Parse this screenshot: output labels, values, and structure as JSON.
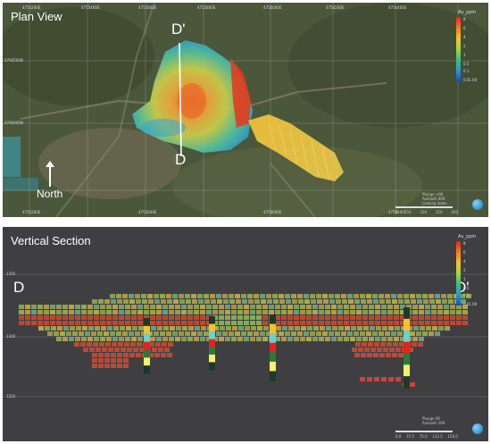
{
  "plan": {
    "title": "Plan View",
    "label_top": "D'",
    "label_bottom": "D",
    "north_label": "North",
    "legend_title": "Au_ppm",
    "legend_ticks": [
      "8",
      "6",
      "4",
      "2",
      "1",
      "0.5",
      "0.1",
      "0.01 00"
    ],
    "scale_info": "Plunge +90\nAzimuth 000\nLooking down",
    "scale_ticks": [
      "0",
      "50",
      "100",
      "150",
      "200"
    ],
    "logo_icon": "globe-logo",
    "top_coords": [
      "4755200E",
      "4755400E",
      "4755600E",
      "4755800E",
      "4756000E",
      "4756200E",
      "4756400E",
      "4756600E"
    ],
    "left_coords": [
      "4760500N",
      "4760400N"
    ]
  },
  "section": {
    "title": "Vertical Section",
    "label_left": "D",
    "label_right": "D'",
    "legend_title": "Au_ppm",
    "legend_ticks": [
      "8",
      "6",
      "4",
      "2",
      "1",
      "0.5",
      "0.1",
      "0.01 00"
    ],
    "scale_info": "Plunge 00\nAzimuth 169",
    "scale_ticks": [
      "0.0",
      "37.5",
      "75.0",
      "112.5",
      "150.0"
    ],
    "logo_icon": "globe-logo",
    "elevations": [
      "1350",
      "1300",
      "1250"
    ]
  },
  "colors": {
    "map_green": "#4d5a3e",
    "section_bg": "#3f3f41",
    "high_grade": "#e8221b",
    "low_grade": "#1a4fb0"
  }
}
